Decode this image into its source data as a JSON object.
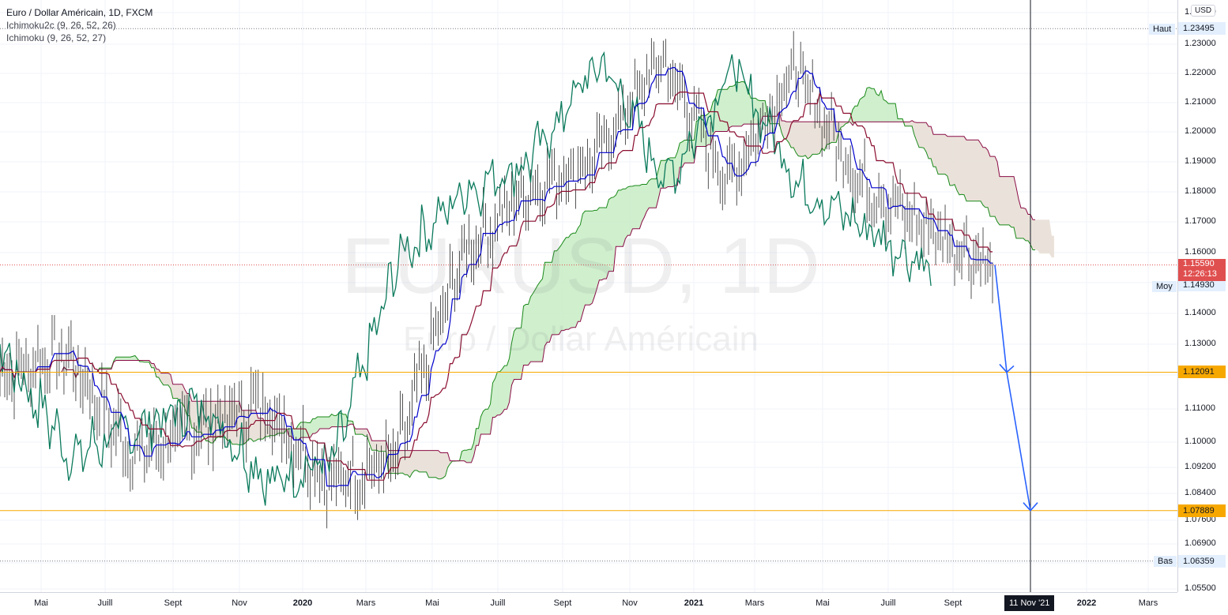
{
  "legend": {
    "title": "Euro / Dollar Américain, 1D, FXCM",
    "ind1": "Ichimoku2c (9, 26, 52, 26)",
    "ind2": "Ichimoku (9, 26, 52, 27)"
  },
  "watermark": {
    "symbol": "EURUSD, 1D",
    "name": "Euro / Dollar Américain"
  },
  "currency_button": "USD",
  "price_axis": {
    "ticks": [
      "1.24000",
      "1.23000",
      "1.22000",
      "1.21000",
      "1.20000",
      "1.19000",
      "1.18000",
      "1.17000",
      "1.16000",
      "1.15000",
      "1.14000",
      "1.13000",
      "1.12000",
      "1.11000",
      "1.10000",
      "1.09200",
      "1.08400",
      "1.07600",
      "1.06900",
      "1.06300",
      "1.05500"
    ],
    "current_price": "1.15590",
    "countdown": "12:26:13",
    "high_value": "1.23495",
    "avg_value": "1.14930",
    "level1_value": "1.12091",
    "level2_value": "1.07889",
    "low_value": "1.06359"
  },
  "labels": {
    "high": "Haut",
    "avg": "Moy",
    "low": "Bas"
  },
  "time_axis": {
    "labels": [
      "Mai",
      "Juill",
      "Sept",
      "Nov",
      "2020",
      "Mars",
      "Mai",
      "Juill",
      "Sept",
      "Nov",
      "2021",
      "Mars",
      "Mai",
      "Juill",
      "Sept",
      "2022",
      "Mars"
    ],
    "crosshair": "11 Nov '21"
  },
  "colors": {
    "price": "#0b7a5c",
    "tenkan": "#0000cc",
    "kijun": "#8a0c2e",
    "span_a": "#1a8a1a",
    "span_b": "#8a0c46",
    "bull_cloud": "#c8ecc4",
    "bear_cloud": "#e6ddd4",
    "level": "#f7a800",
    "current": "#e04f4f",
    "arrow": "#2962ff"
  },
  "chart_data": {
    "type": "line",
    "title": "Euro / Dollar Américain, 1D, FXCM",
    "x": [
      "2019-05",
      "2019-07",
      "2019-09",
      "2019-11",
      "2020-01",
      "2020-03",
      "2020-05",
      "2020-07",
      "2020-09",
      "2020-11",
      "2021-01",
      "2021-03",
      "2021-05",
      "2021-07",
      "2021-09",
      "2021-10"
    ],
    "series": [
      {
        "values": [
          1.121,
          1.127,
          1.096,
          1.104,
          1.112,
          1.087,
          1.095,
          1.16,
          1.181,
          1.191,
          1.225,
          1.183,
          1.222,
          1.183,
          1.168,
          1.156
        ]
      }
    ],
    "ylim": [
      1.055,
      1.24
    ],
    "horizontal_levels": [
      1.12091,
      1.07889
    ],
    "high": 1.23495,
    "low": 1.06359,
    "average": 1.1493,
    "current": 1.1559,
    "projection": [
      1.1559,
      1.12091,
      1.07889
    ]
  }
}
